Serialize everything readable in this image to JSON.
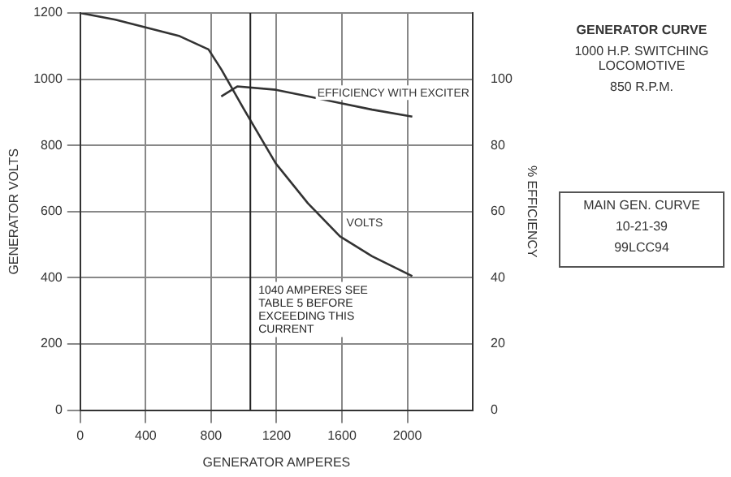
{
  "chart_data": {
    "type": "line",
    "title": "GENERATOR CURVE",
    "subtitle": "1000 H.P. SWITCHING LOCOMOTIVE",
    "xlabel": "GENERATOR AMPERES",
    "ylabel": "GENERATOR VOLTS",
    "y2label": "% EFFICIENCY",
    "xlim": [
      0,
      2400
    ],
    "xticks": [
      0,
      400,
      800,
      1200,
      1600,
      2000
    ],
    "ylim": [
      0,
      1200
    ],
    "yticks": [
      0,
      200,
      400,
      600,
      800,
      1000,
      1200
    ],
    "y2lim": [
      0,
      120
    ],
    "y2ticks": [
      0,
      20,
      40,
      60,
      80,
      100
    ],
    "grid": true,
    "legend": false,
    "marker": "none",
    "line_style": "solid",
    "series": [
      {
        "name": "VOLTS",
        "color": "#333333",
        "x": [
          0,
          215,
          608,
          784,
          862,
          1000,
          1196,
          1392,
          1588,
          1784,
          2030
        ],
        "values": [
          1200,
          1180,
          1130,
          1090,
          1030,
          910,
          745,
          625,
          525,
          465,
          405
        ]
      },
      {
        "name": "EFFICIENCY WITH EXCITER",
        "color": "#333333",
        "axis": "y2",
        "x": [
          862,
          960,
          1196,
          1392,
          1588,
          1784,
          2030
        ],
        "values": [
          94.8,
          97.8,
          96.8,
          94.8,
          92.8,
          90.8,
          88.7
        ]
      }
    ],
    "ref_lines": [
      {
        "axis": "x",
        "value": 1040,
        "label": "1040 AMPERES SEE TABLE 5 BEFORE EXCEEDING THIS CURRENT"
      }
    ],
    "annotations": [
      "850 R.P.M.",
      "MAIN GEN. CURVE",
      "10-21-39",
      "99LCC94"
    ]
  }
}
